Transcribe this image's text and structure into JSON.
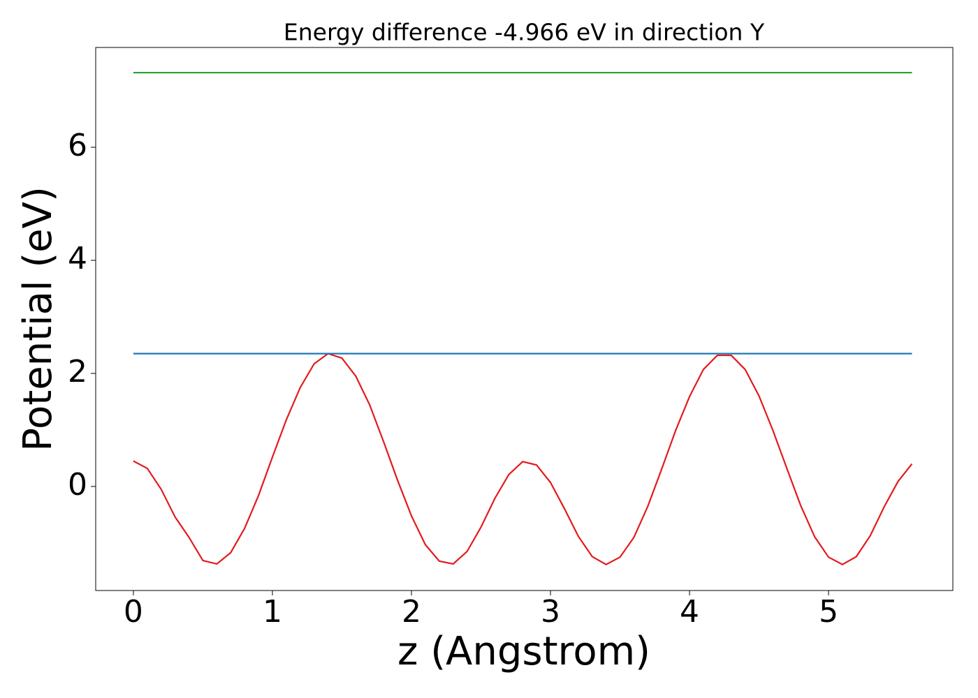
{
  "chart_data": {
    "type": "line",
    "title": "Energy difference -4.966 eV in direction Y",
    "xlabel": "z (Angstrom)",
    "ylabel": "Potential (eV)",
    "xlim": [
      -0.271,
      5.894
    ],
    "ylim": [
      -1.84,
      7.765
    ],
    "xticks": [
      0,
      1,
      2,
      3,
      4,
      5
    ],
    "yticks": [
      0,
      2,
      4,
      6
    ],
    "grid": false,
    "series": [
      {
        "color": "#e31a1c",
        "x": [
          0,
          0.1,
          0.2,
          0.3,
          0.4,
          0.5,
          0.6,
          0.7,
          0.8,
          0.9,
          1.0,
          1.1,
          1.2,
          1.3,
          1.4,
          1.5,
          1.6,
          1.7,
          1.8,
          1.9,
          2.0,
          2.1,
          2.2,
          2.3,
          2.4,
          2.5,
          2.6,
          2.7,
          2.8,
          2.9,
          3.0,
          3.1,
          3.2,
          3.3,
          3.4,
          3.5,
          3.6,
          3.7,
          3.8,
          3.9,
          4.0,
          4.1,
          4.2,
          4.3,
          4.4,
          4.5,
          4.6,
          4.7,
          4.8,
          4.9,
          5.0,
          5.1,
          5.2,
          5.3,
          5.4,
          5.5,
          5.6
        ],
        "values": [
          0.45,
          0.32,
          -0.05,
          -0.54,
          -0.9,
          -1.31,
          -1.37,
          -1.17,
          -0.74,
          -0.16,
          0.52,
          1.18,
          1.75,
          2.17,
          2.35,
          2.27,
          1.95,
          1.44,
          0.79,
          0.11,
          -0.52,
          -1.03,
          -1.32,
          -1.37,
          -1.15,
          -0.72,
          -0.21,
          0.21,
          0.44,
          0.38,
          0.07,
          -0.39,
          -0.88,
          -1.24,
          -1.38,
          -1.25,
          -0.9,
          -0.35,
          0.31,
          0.99,
          1.59,
          2.07,
          2.32,
          2.32,
          2.07,
          1.6,
          0.99,
          0.32,
          -0.34,
          -0.89,
          -1.25,
          -1.38,
          -1.24,
          -0.87,
          -0.36,
          0.09,
          0.4
        ]
      },
      {
        "color": "#1f77b4",
        "x": [
          0,
          5.6
        ],
        "values": [
          2.35,
          2.35
        ]
      },
      {
        "color": "#2ca02c",
        "x": [
          0,
          5.6
        ],
        "values": [
          7.32,
          7.32
        ]
      }
    ]
  }
}
